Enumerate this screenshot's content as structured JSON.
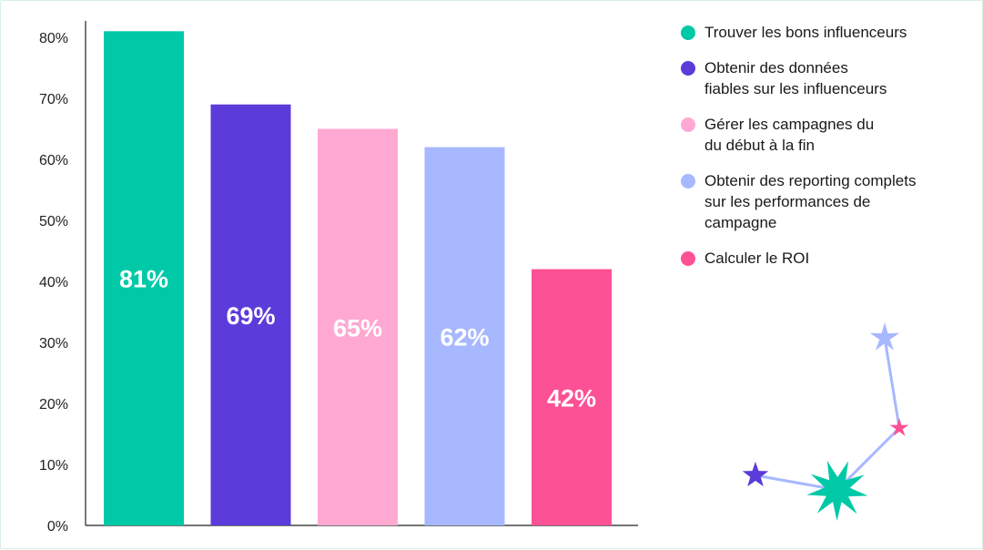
{
  "chart_data": {
    "type": "bar",
    "categories": [
      "Trouver les bons influenceurs",
      "Obtenir des données\nfiables sur les influenceurs",
      "Gérer les campagnes du\ndu début à la fin",
      "Obtenir des reporting complets\nsur les performances de\ncampagne",
      "Calculer le ROI"
    ],
    "values": [
      81,
      69,
      65,
      62,
      42
    ],
    "data_labels": [
      "81%",
      "69%",
      "65%",
      "62%",
      "42%"
    ],
    "colors": [
      "#00c9a7",
      "#5b3bd9",
      "#ffa8d2",
      "#a7b8ff",
      "#fc5195"
    ],
    "ylim": [
      0,
      80
    ],
    "yticks": [
      0,
      10,
      20,
      30,
      40,
      50,
      60,
      70,
      80
    ],
    "ytick_labels": [
      "0%",
      "10%",
      "20%",
      "30%",
      "40%",
      "50%",
      "60%",
      "70%",
      "80%"
    ],
    "legend_position": "right",
    "grid": false
  },
  "decoration": {
    "star_colors": [
      "#a7b8ff",
      "#fc5195",
      "#00c9a7",
      "#5b3bd9"
    ],
    "line_color": "#a7b8ff"
  }
}
